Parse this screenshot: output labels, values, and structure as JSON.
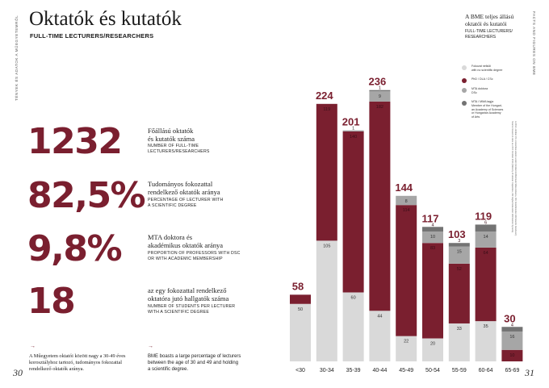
{
  "header": {
    "title": "Oktatók és kutatók",
    "subtitle": "FULL-TIME LECTURERS/RESEARCHERS",
    "side_left": "TÉNYEK ÉS ADATOK A MŰEGYETEMRŐL",
    "side_right": "FACTS AND FIGURES ON BME"
  },
  "stats": [
    {
      "value": "1232",
      "hu": [
        "Főállású oktatók",
        "és kutatók száma"
      ],
      "en": [
        "NUMBER OF FULL-TIME",
        "LECTURERS/RESEARCHERS"
      ]
    },
    {
      "value": "82,5%",
      "hu": [
        "Tudományos fokozattal",
        "rendelkező oktatók aránya"
      ],
      "en": [
        "PERCENTAGE OF LECTURER WITH",
        "A SCIENTIFIC DEGREE"
      ]
    },
    {
      "value": "9,8%",
      "hu": [
        "MTA doktora és",
        "akadémikus oktatók aránya"
      ],
      "en": [
        "PROPORTION OF PROFESSORS WITH DSC",
        "OR WITH ACADEMIC MEMBERSHIP"
      ]
    },
    {
      "value": "18",
      "hu": [
        "az egy fokozattal rendelkező",
        "oktatóra jutó hallgatók száma"
      ],
      "en": [
        "NUMBER OF STUDENTS PER LECTURER",
        "WITH A SCIENTIFIC DEGREE"
      ]
    }
  ],
  "notes": {
    "arrow": "→",
    "hu": [
      "A Műegyetem oktatói között nagy a 30-49 éves",
      "korosztályhoz tartozó, tudományos fokozattal",
      "rendelkező oktatók aránya."
    ],
    "en": [
      "BME boasts a large percentage of lecturers",
      "between the age of 30 and 49 and holding",
      "a scientific degree."
    ]
  },
  "page_numbers": {
    "left": "30",
    "right": "31"
  },
  "side_notes": [
    "A 2014. október 15-i statisztikai adatok szerint (Emberi Erőforrások Minisztériuma, FIR Felsőoktatási Információs Rendszer).",
    "Source: based on data as of 15 October 2014 (Ministry of Human Capacities, FIR Higher Education Information System)."
  ],
  "legend": {
    "title": [
      "A BME teljes állású",
      "oktatói és kutatói"
    ],
    "subtitle": [
      "FULL-TIME LECTURERS/",
      "RESEARCHERS"
    ],
    "items": [
      {
        "lines": [
          "Fokozat nélküli",
          "with no scientific degree"
        ],
        "color": "#d9d9d9"
      },
      {
        "lines": [
          "PhD / DLA / CSc"
        ],
        "color": "#7a1f2f"
      },
      {
        "lines": [
          "MTA doktora",
          "DSc"
        ],
        "color": "#a6a6a6"
      },
      {
        "lines": [
          "MTA / MMA tagja",
          "Member of the Hungari-",
          "an Academy of Sciences",
          "or Hungarian Academy",
          "of Arts"
        ],
        "color": "#737373"
      }
    ]
  },
  "chart_data": {
    "type": "bar",
    "stacked": true,
    "categories": [
      "<30",
      "30-34",
      "35-39",
      "40-44",
      "45-49",
      "50-54",
      "55-59",
      "60-64",
      "65-69"
    ],
    "totals": [
      58,
      224,
      201,
      236,
      144,
      117,
      103,
      119,
      30
    ],
    "series": [
      {
        "key": "no_degree",
        "values": [
          50,
          105,
          60,
          44,
          22,
          20,
          33,
          35,
          0
        ],
        "color": "#d9d9d9"
      },
      {
        "key": "phd",
        "values": [
          8,
          119,
          140,
          182,
          114,
          83,
          52,
          64,
          10
        ],
        "color": "#7a1f2f"
      },
      {
        "key": "dsc",
        "values": [
          0,
          0,
          1,
          9,
          8,
          10,
          15,
          14,
          16
        ],
        "color": "#a6a6a6"
      },
      {
        "key": "academy",
        "values": [
          0,
          0,
          0,
          1,
          0,
          4,
          3,
          6,
          4
        ],
        "color": "#737373"
      }
    ],
    "segment_labels": [
      [
        "50",
        "",
        "",
        ""
      ],
      [
        "105",
        "119",
        "",
        ""
      ],
      [
        "60",
        "140",
        "1",
        ""
      ],
      [
        "44",
        "182",
        "9",
        "1"
      ],
      [
        "22",
        "114",
        "8",
        ""
      ],
      [
        "20",
        "83",
        "10",
        "4"
      ],
      [
        "33",
        "52",
        "15",
        "3"
      ],
      [
        "35",
        "64",
        "14",
        "6"
      ],
      [
        "",
        "10",
        "16",
        "4"
      ]
    ],
    "ylim": [
      0,
      240
    ]
  }
}
